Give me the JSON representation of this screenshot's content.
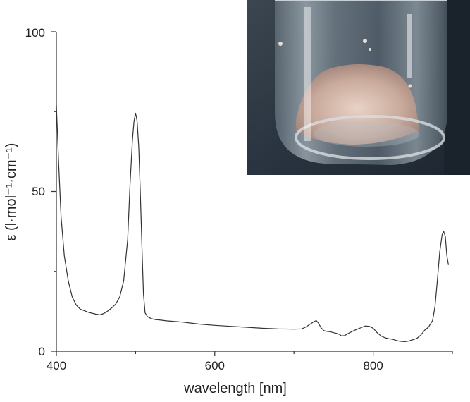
{
  "chart_data": {
    "type": "line",
    "xlabel": "wavelength [nm]",
    "ylabel": "ε (l·mol⁻¹·cm⁻¹)",
    "xlim": [
      400,
      900
    ],
    "ylim": [
      0,
      100
    ],
    "x_ticks": [
      "400",
      "600",
      "800"
    ],
    "y_ticks": [
      "0",
      "50",
      "100"
    ],
    "grid": false,
    "series": [
      {
        "color": "#333333",
        "x": [
          400,
          403,
          406,
          410,
          415,
          420,
          425,
          430,
          440,
          450,
          455,
          460,
          465,
          470,
          475,
          480,
          485,
          490,
          493,
          496,
          498,
          500,
          502,
          504,
          506,
          508,
          510,
          512,
          515,
          520,
          525,
          530,
          540,
          550,
          560,
          570,
          580,
          600,
          620,
          640,
          660,
          680,
          700,
          710,
          715,
          720,
          725,
          728,
          731,
          734,
          738,
          742,
          746,
          750,
          755,
          758,
          760,
          764,
          768,
          772,
          776,
          780,
          785,
          790,
          795,
          800,
          805,
          810,
          815,
          820,
          825,
          830,
          835,
          840,
          845,
          850,
          855,
          860,
          865,
          870,
          875,
          878,
          881,
          884,
          887,
          889,
          891,
          893,
          895
        ],
        "values": [
          77,
          58,
          42,
          30,
          22,
          17,
          14.5,
          13.2,
          12.2,
          11.6,
          11.4,
          11.8,
          12.6,
          13.6,
          14.8,
          17,
          22,
          35,
          52,
          66,
          72,
          74.5,
          72,
          64,
          50,
          33,
          18,
          12,
          10.8,
          10.2,
          9.9,
          9.8,
          9.5,
          9.3,
          9.1,
          8.8,
          8.5,
          8.1,
          7.8,
          7.5,
          7.2,
          7.0,
          6.9,
          7.0,
          7.6,
          8.4,
          9.2,
          9.6,
          8.8,
          7.4,
          6.4,
          6.2,
          6.1,
          5.8,
          5.5,
          5.2,
          4.8,
          4.9,
          5.5,
          6.0,
          6.5,
          6.9,
          7.4,
          7.9,
          7.8,
          7.2,
          5.8,
          4.8,
          4.2,
          3.9,
          3.7,
          3.3,
          3.1,
          3.0,
          3.2,
          3.6,
          4.0,
          5.0,
          6.6,
          7.6,
          9.6,
          14,
          22,
          31,
          36.5,
          37.5,
          36,
          30,
          27
        ]
      }
    ]
  },
  "inset": {
    "description_icon": "photo-of-glass-vial-with-pale-pink-crystals"
  }
}
